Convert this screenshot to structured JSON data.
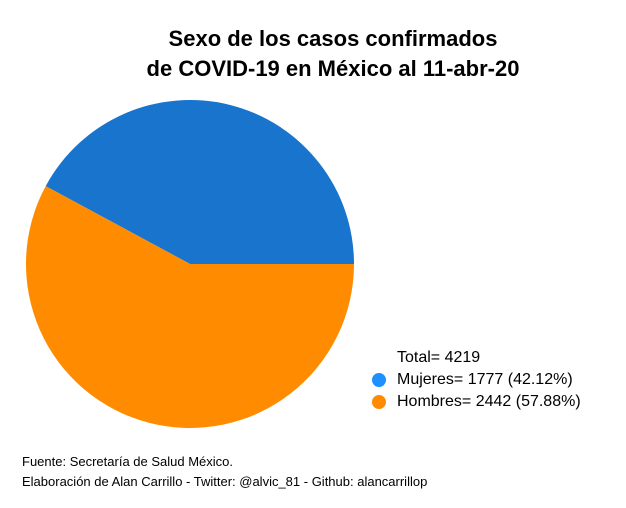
{
  "chart_data": {
    "type": "pie",
    "title": [
      "Sexo de los casos confirmados",
      "de COVID-19 en México al 11-abr-20"
    ],
    "total_label": "Total= 4219",
    "slices": [
      {
        "name": "Mujeres",
        "value": 1777,
        "percent": 42.12,
        "color": "#1874CD",
        "legend_color": "#1E90FF",
        "label": "Mujeres= 1777 (42.12%)"
      },
      {
        "name": "Hombres",
        "value": 2442,
        "percent": 57.88,
        "color": "#FF8C00",
        "legend_color": "#FF8C00",
        "label": "Hombres= 2442 (57.88%)"
      }
    ],
    "start_angle_deg": 0,
    "direction": "counterclockwise",
    "legend_position": "bottom-right"
  },
  "caption": {
    "line1": "Fuente: Secretaría de Salud México.",
    "line2": "Elaboración de Alan Carrillo - Twitter: @alvic_81 - Github: alancarrillop"
  }
}
